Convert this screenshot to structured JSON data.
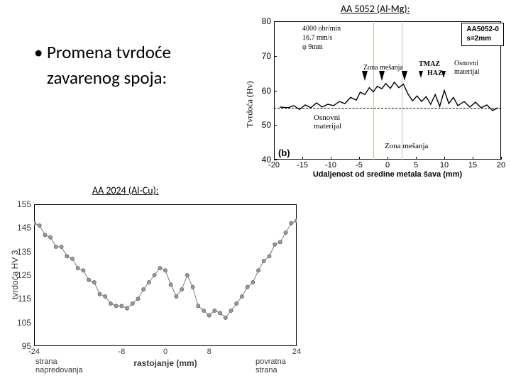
{
  "bullet": {
    "line1": "Promena tvrdoće",
    "line2": "zavarenog spoja:"
  },
  "titles": {
    "top": "AA 5052 (Al-Mg):",
    "bottom": "AA 2024 (Al-Cu):"
  },
  "top_chart": {
    "type": "line",
    "ylabel": "Tvrdoća (Hv)",
    "xlabel": "Udaljenost od sredine metala šava (mm)",
    "xlim": [
      -20,
      20
    ],
    "ylim": [
      40,
      80
    ],
    "xtick_step": 5,
    "ytick_step": 10,
    "xticks": [
      -20,
      -15,
      -10,
      -5,
      0,
      5,
      10,
      15,
      20
    ],
    "yticks": [
      40,
      50,
      60,
      70,
      80
    ],
    "panel_label": "(b)",
    "line_color": "#000000",
    "line_width": 1.4,
    "background_color": "#ffffff",
    "dashed_baseline_y": 55,
    "vlines_x": [
      -2.5,
      2.5
    ],
    "vline_color": "#b8b088",
    "legend": {
      "line1": "AA5052-0",
      "line2": "s=2mm"
    },
    "params": {
      "l1": "4000 obr/min",
      "l2": "16.7 mm/s",
      "l3": "φ 9mm"
    },
    "annots": {
      "zm_left": "Zona mešanja",
      "tmaz": "TMAZ",
      "haz": "HAZ",
      "osnovni_right_l1": "Osnovni",
      "osnovni_right_l2": "materijal",
      "osnovni_left_l1": "Osnovni",
      "osnovni_left_l2": "materijal",
      "zm_bottom": "Zona mešanja"
    },
    "arrows_x": [
      -4,
      -1,
      3,
      6,
      10
    ],
    "data": [
      [
        -19,
        55.2
      ],
      [
        -17.5,
        55.0
      ],
      [
        -16.5,
        55.6
      ],
      [
        -15.5,
        54.5
      ],
      [
        -14.5,
        55.8
      ],
      [
        -13.5,
        55.0
      ],
      [
        -12.5,
        56.4
      ],
      [
        -11.5,
        55.2
      ],
      [
        -10.5,
        56.0
      ],
      [
        -9.5,
        55.6
      ],
      [
        -8.5,
        56.8
      ],
      [
        -7.5,
        56.2
      ],
      [
        -6.5,
        58.0
      ],
      [
        -5.5,
        57.2
      ],
      [
        -4.8,
        59.5
      ],
      [
        -4.0,
        58.8
      ],
      [
        -3.2,
        60.8
      ],
      [
        -2.5,
        59.6
      ],
      [
        -1.8,
        61.2
      ],
      [
        -1.0,
        60.5
      ],
      [
        -0.3,
        62.0
      ],
      [
        0.5,
        60.6
      ],
      [
        1.2,
        62.4
      ],
      [
        2.0,
        60.8
      ],
      [
        2.8,
        61.8
      ],
      [
        3.6,
        59.0
      ],
      [
        4.4,
        57.0
      ],
      [
        5.2,
        58.4
      ],
      [
        6.0,
        56.8
      ],
      [
        6.8,
        58.2
      ],
      [
        7.6,
        56.0
      ],
      [
        8.4,
        58.8
      ],
      [
        9.2,
        55.4
      ],
      [
        10.0,
        60.0
      ],
      [
        10.8,
        56.2
      ],
      [
        11.6,
        58.0
      ],
      [
        12.4,
        55.6
      ],
      [
        13.5,
        56.8
      ],
      [
        14.5,
        55.2
      ],
      [
        15.5,
        56.6
      ],
      [
        16.5,
        55.0
      ],
      [
        17.5,
        55.8
      ],
      [
        18.5,
        54.2
      ],
      [
        19.5,
        55.0
      ]
    ]
  },
  "bot_chart": {
    "type": "line-markers",
    "ylabel": "tvrdoća HV 3",
    "xlabel": "rastojanje (mm)",
    "left_label_l1": "strana",
    "left_label_l2": "napredovanja",
    "right_label_l1": "povratna",
    "right_label_l2": "strana",
    "xlim": [
      -24,
      24
    ],
    "ylim": [
      95,
      155
    ],
    "xticks": [
      -24,
      -8,
      0,
      8,
      24
    ],
    "yticks": [
      95,
      105,
      115,
      125,
      135,
      145,
      155
    ],
    "line_color": "#7a7a7a",
    "marker_fill": "#9a9a9a",
    "marker_stroke": "#4a4a4a",
    "marker_size": 2.6,
    "line_width": 1.0,
    "background_color": "#ffffff",
    "data": [
      [
        -24,
        147
      ],
      [
        -23,
        146
      ],
      [
        -22,
        142
      ],
      [
        -21,
        141
      ],
      [
        -20,
        137
      ],
      [
        -19,
        137
      ],
      [
        -18,
        133
      ],
      [
        -17,
        132
      ],
      [
        -16,
        128
      ],
      [
        -15,
        127
      ],
      [
        -14,
        123
      ],
      [
        -13,
        122
      ],
      [
        -12,
        117
      ],
      [
        -11,
        116
      ],
      [
        -10,
        113
      ],
      [
        -9,
        112
      ],
      [
        -8,
        112
      ],
      [
        -7,
        111
      ],
      [
        -6,
        113
      ],
      [
        -5,
        115
      ],
      [
        -4,
        119
      ],
      [
        -3,
        122
      ],
      [
        -2,
        125
      ],
      [
        -1,
        128
      ],
      [
        0,
        127
      ],
      [
        1,
        121
      ],
      [
        2,
        116
      ],
      [
        3,
        119
      ],
      [
        4,
        125
      ],
      [
        5,
        120
      ],
      [
        6,
        112
      ],
      [
        7,
        110
      ],
      [
        8,
        108
      ],
      [
        9,
        110
      ],
      [
        10,
        109
      ],
      [
        11,
        107
      ],
      [
        12,
        110
      ],
      [
        13,
        113
      ],
      [
        14,
        116
      ],
      [
        15,
        120
      ],
      [
        16,
        122
      ],
      [
        17,
        127
      ],
      [
        18,
        131
      ],
      [
        19,
        133
      ],
      [
        20,
        138
      ],
      [
        21,
        139
      ],
      [
        22,
        143
      ],
      [
        23,
        147
      ],
      [
        24,
        148
      ]
    ]
  }
}
